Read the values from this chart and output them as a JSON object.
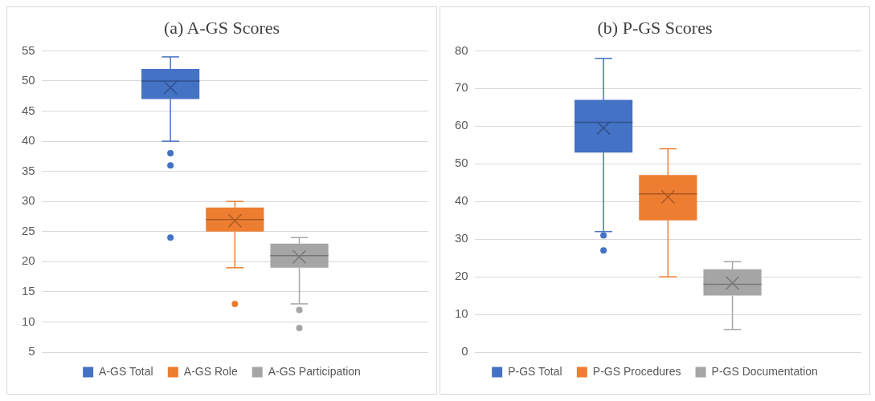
{
  "chart_data": [
    {
      "type": "box",
      "title": "(a) A-GS Scores",
      "categories": [
        null
      ],
      "ylim": [
        5,
        55
      ],
      "yticks": [
        5,
        10,
        15,
        20,
        25,
        30,
        35,
        40,
        45,
        50,
        55
      ],
      "grid": "y",
      "legend": "bottom",
      "tick_labels": "y",
      "series": [
        {
          "name": "A-GS Total",
          "color": "#4472c4",
          "boxes": [
            {
              "low": 40,
              "q1": 47,
              "median": 50,
              "q3": 52,
              "high": 54,
              "mean": 48.9,
              "outliers": [
                38,
                36,
                24
              ]
            }
          ]
        },
        {
          "name": "A-GS Role",
          "color": "#ed7d31",
          "boxes": [
            {
              "low": 19,
              "q1": 25,
              "median": 27,
              "q3": 29,
              "high": 30,
              "mean": 26.8,
              "outliers": [
                13
              ]
            }
          ]
        },
        {
          "name": "A-GS Participation",
          "color": "#a5a5a5",
          "boxes": [
            {
              "low": 13,
              "q1": 19,
              "median": 21,
              "q3": 23,
              "high": 24,
              "mean": 20.8,
              "outliers": [
                12,
                9
              ]
            }
          ]
        }
      ]
    },
    {
      "type": "box",
      "title": "(b) P-GS Scores",
      "categories": [
        null
      ],
      "ylim": [
        0,
        80
      ],
      "yticks": [
        0,
        10,
        20,
        30,
        40,
        50,
        60,
        70,
        80
      ],
      "grid": "y",
      "legend": "bottom",
      "tick_labels": "y",
      "series": [
        {
          "name": "P-GS Total",
          "color": "#4472c4",
          "boxes": [
            {
              "low": 32,
              "q1": 53,
              "median": 61,
              "q3": 67,
              "high": 78,
              "mean": 59.5,
              "outliers": [
                31,
                27
              ]
            }
          ]
        },
        {
          "name": "P-GS Procedures",
          "color": "#ed7d31",
          "boxes": [
            {
              "low": 20,
              "q1": 35,
              "median": 42,
              "q3": 47,
              "high": 54,
              "mean": 41.2
            }
          ]
        },
        {
          "name": "P-GS Documentation",
          "color": "#a5a5a5",
          "boxes": [
            {
              "low": 6,
              "q1": 15,
              "median": 18,
              "q3": 22,
              "high": 24,
              "mean": 18.3
            }
          ]
        }
      ]
    }
  ]
}
